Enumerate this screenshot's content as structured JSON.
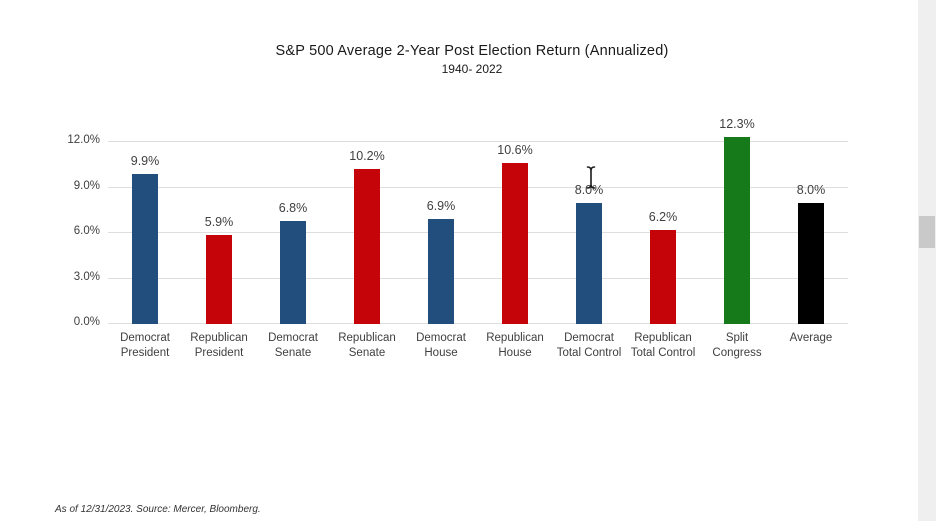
{
  "page": {
    "background": "#FFFFFF"
  },
  "chart_data": {
    "type": "bar",
    "title": "S&P 500 Average 2-Year Post Election Return (Annualized)",
    "subtitle": "1940- 2022",
    "xlabel": "",
    "ylabel": "",
    "ylim": [
      0,
      12
    ],
    "grid": true,
    "legend": "none",
    "y_ticks": [
      {
        "label": "12.0%",
        "value": 12
      },
      {
        "label": "9.0%",
        "value": 9
      },
      {
        "label": "6.0%",
        "value": 6
      },
      {
        "label": "3.0%",
        "value": 3
      },
      {
        "label": "0.0%",
        "value": 0
      }
    ],
    "categories": [
      "Democrat President",
      "Republican President",
      "Democrat Senate",
      "Republican Senate",
      "Democrat House",
      "Republican House",
      "Democrat Total Control",
      "Republican Total Control",
      "Split Congress",
      "Average"
    ],
    "values": [
      9.9,
      5.9,
      6.8,
      10.2,
      6.9,
      10.6,
      8.0,
      6.2,
      12.3,
      8.0
    ],
    "bars": [
      {
        "line1": "Democrat",
        "line2": "President",
        "value": 9.9,
        "label": "9.9%",
        "color": "#214E7C"
      },
      {
        "line1": "Republican",
        "line2": "President",
        "value": 5.9,
        "label": "5.9%",
        "color": "#C40408"
      },
      {
        "line1": "Democrat",
        "line2": "Senate",
        "value": 6.8,
        "label": "6.8%",
        "color": "#214E7C"
      },
      {
        "line1": "Republican",
        "line2": "Senate",
        "value": 10.2,
        "label": "10.2%",
        "color": "#C40408"
      },
      {
        "line1": "Democrat",
        "line2": "House",
        "value": 6.9,
        "label": "6.9%",
        "color": "#214E7C"
      },
      {
        "line1": "Republican",
        "line2": "House",
        "value": 10.6,
        "label": "10.6%",
        "color": "#C40408"
      },
      {
        "line1": "Democrat",
        "line2": "Total Control",
        "value": 8.0,
        "label": "8.0%",
        "color": "#214E7C"
      },
      {
        "line1": "Republican",
        "line2": "Total Control",
        "value": 6.2,
        "label": "6.2%",
        "color": "#C40408"
      },
      {
        "line1": "Split",
        "line2": "Congress",
        "value": 12.3,
        "label": "12.3%",
        "color": "#177A1A"
      },
      {
        "line1": "Average",
        "line2": "",
        "value": 8.0,
        "label": "8.0%",
        "color": "#000000"
      }
    ]
  },
  "colors": {
    "democrat_blue": "#214E7C",
    "republican_red": "#C40408",
    "split_green": "#177A1A",
    "average_black": "#000000",
    "gridline": "#DEDEDE",
    "axis_text": "#404040",
    "title_text": "#1A1A1A",
    "scrollbar_track": "#EFEFEF",
    "scrollbar_thumb": "#C9C9C9"
  },
  "footer": {
    "text": "As of 12/31/2023. Source: Mercer, Bloomberg."
  },
  "cursor": {
    "type": "i-beam"
  },
  "scrollbar": {
    "visible": true
  }
}
